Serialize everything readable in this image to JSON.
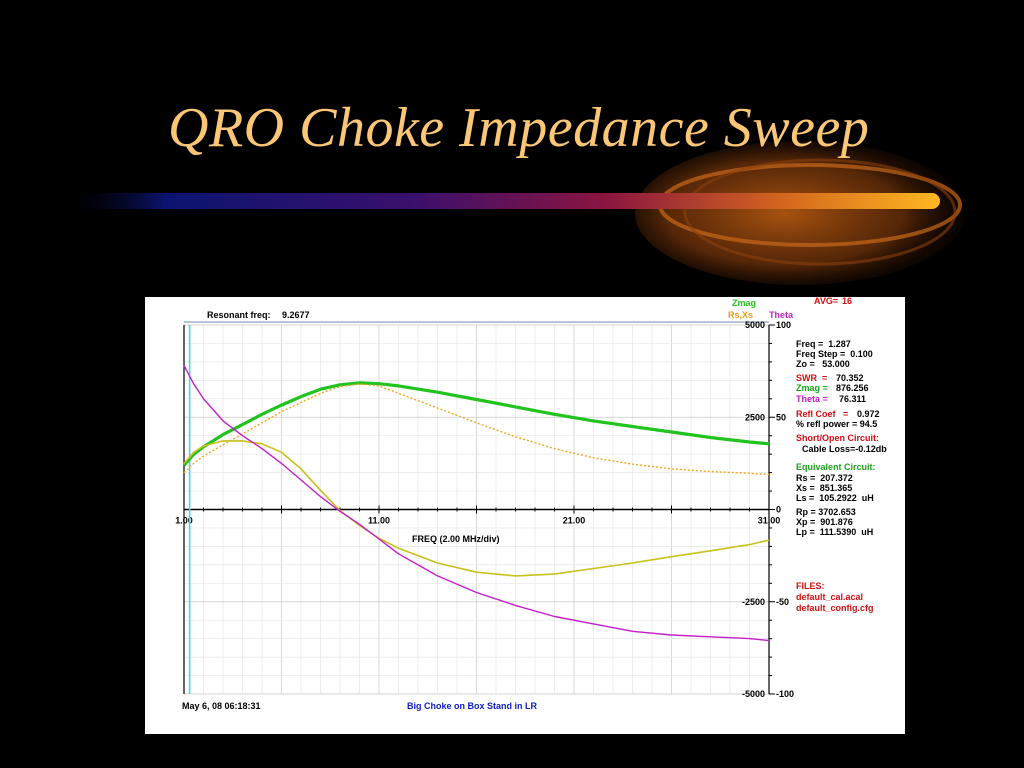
{
  "slide": {
    "title": "QRO Choke Impedance Sweep"
  },
  "header": {
    "resonant_label": "Resonant freq:",
    "resonant_value": "9.2677",
    "legend_zmag": "Zmag",
    "legend_rsxs": "Rs,Xs",
    "legend_theta": "Theta",
    "avg_label": "AVG=",
    "avg_value": "16"
  },
  "footer": {
    "timestamp": "May 6, 08  06:18:31",
    "caption": "Big Choke on Box Stand in LR"
  },
  "readouts": {
    "freq": "Freq =  1.287",
    "freq_step": "Freq Step =  0.100",
    "zo": "Zo =   53.000",
    "swr_label": "SWR  =",
    "swr_value": "70.352",
    "zmag_label": "Zmag =",
    "zmag_value": "876.256",
    "theta_label": "Theta =",
    "theta_value": "76.311",
    "refl_label": "Refl Coef   =",
    "refl_value": "0.972",
    "refl_power": "% refl power = 94.5",
    "short_open": "Short/Open Circuit:",
    "cable_loss": "Cable Loss=-0.12db",
    "equiv": "Equivalent Circuit:",
    "rs": "Rs =  207.372",
    "xs": "Xs =  851.365",
    "ls": "Ls =  105.2922  uH",
    "rp": "Rp = 3702.653",
    "xp": "Xp =  901.876",
    "lp": "Lp =  111.5390  uH",
    "files": "FILES:",
    "file1": "default_cal.acal",
    "file2": "default_config.cfg"
  },
  "colors": {
    "zmag": "#22c31e",
    "rs": "#f0a81a",
    "xs": "#c8c11a",
    "theta": "#c41fc9",
    "cursor": "#40d8f0",
    "title": "#fbc777",
    "readout_red": "#d01010",
    "readout_green": "#1aa31a",
    "readout_magenta": "#c41fc9",
    "caption_blue": "#1020c0"
  },
  "chart_data": {
    "type": "line",
    "xlabel": "FREQ (2.00 MHz/div)",
    "xlim": [
      1,
      31
    ],
    "x_ticks": [
      "1.00",
      "11.00",
      "21.00",
      "31.00"
    ],
    "ylim_left": [
      -5000,
      5000
    ],
    "y_ticks_left": [
      "5000",
      "2500",
      "-2500",
      "-5000"
    ],
    "ylim_right": [
      -100,
      100
    ],
    "y_ticks_right": [
      "100",
      "50",
      "0",
      "-50",
      "-100"
    ],
    "cursor_x": 1.29,
    "grid": true,
    "series": [
      {
        "name": "Zmag",
        "axis": "left",
        "x": [
          1,
          1.5,
          2,
          3,
          4,
          5,
          6,
          7,
          8,
          9,
          10,
          11,
          12,
          14,
          16,
          18,
          20,
          22,
          24,
          26,
          28,
          30,
          31
        ],
        "y": [
          1200,
          1500,
          1700,
          2030,
          2300,
          2580,
          2830,
          3060,
          3260,
          3380,
          3430,
          3410,
          3350,
          3180,
          2980,
          2780,
          2580,
          2400,
          2250,
          2100,
          1950,
          1830,
          1780
        ]
      },
      {
        "name": "Rs",
        "axis": "left",
        "x": [
          1,
          1.5,
          2,
          3,
          4,
          5,
          6,
          7,
          8,
          9,
          10,
          11,
          12,
          14,
          16,
          18,
          20,
          22,
          24,
          26,
          28,
          30,
          31
        ],
        "y": [
          1000,
          1250,
          1450,
          1750,
          2050,
          2350,
          2650,
          2900,
          3150,
          3330,
          3400,
          3350,
          3150,
          2750,
          2350,
          1970,
          1650,
          1400,
          1230,
          1100,
          1030,
          980,
          950
        ]
      },
      {
        "name": "Xs",
        "axis": "left",
        "x": [
          1,
          1.5,
          2,
          3,
          4,
          5,
          6,
          7,
          8,
          9,
          10,
          11,
          12,
          14,
          16,
          18,
          20,
          22,
          24,
          26,
          28,
          30,
          31
        ],
        "y": [
          1250,
          1550,
          1720,
          1860,
          1860,
          1780,
          1550,
          1100,
          520,
          -30,
          -430,
          -780,
          -1050,
          -1450,
          -1700,
          -1800,
          -1750,
          -1600,
          -1450,
          -1280,
          -1120,
          -950,
          -830
        ]
      },
      {
        "name": "Theta",
        "axis": "right",
        "x": [
          1,
          1.5,
          2,
          2.5,
          3,
          4,
          5,
          6,
          7,
          8,
          9,
          10,
          11,
          12,
          14,
          16,
          18,
          20,
          22,
          24,
          26,
          28,
          30,
          31
        ],
        "y": [
          78,
          68,
          60,
          54,
          48,
          40,
          33,
          25,
          16,
          7,
          -1,
          -8,
          -16,
          -24,
          -36,
          -45,
          -52,
          -58,
          -62,
          -66,
          -68,
          -69,
          -70,
          -71
        ]
      }
    ]
  }
}
